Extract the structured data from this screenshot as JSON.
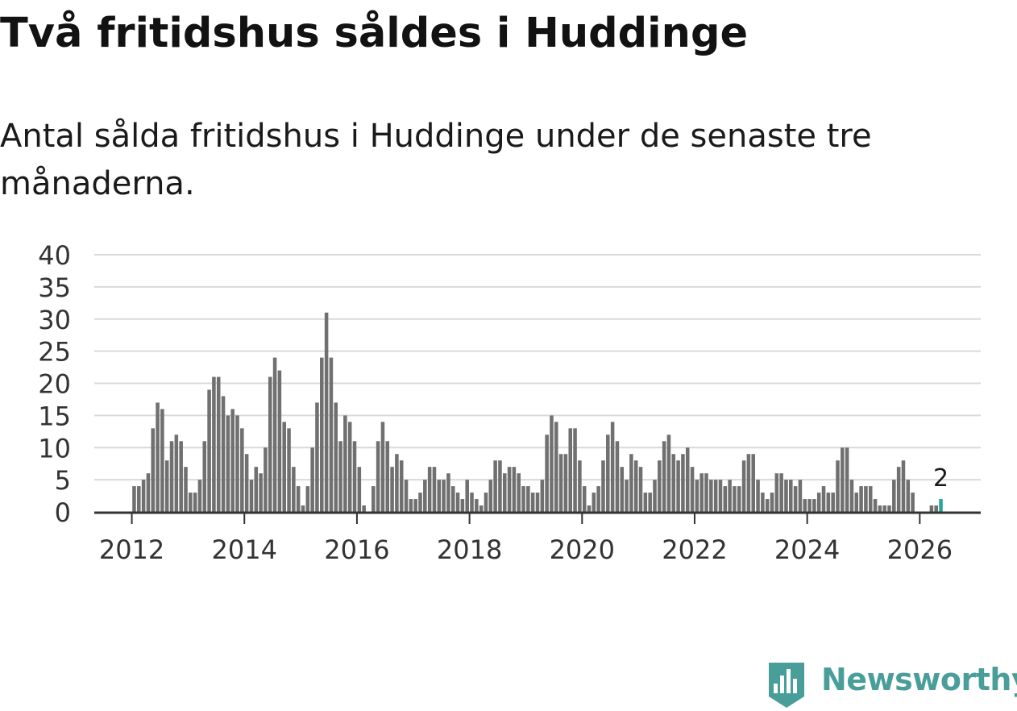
{
  "title": "Två fritidshus såldes i Huddinge",
  "subtitle": "Antal sålda fritidshus i Huddinge under de senaste tre månaderna.",
  "brand": {
    "name": "Newsworthy",
    "color": "#4a9e99",
    "icon": "newsworthy-logo-icon"
  },
  "chart_data": {
    "type": "bar",
    "title": "",
    "xlabel": "",
    "ylabel": "",
    "ylim": [
      0,
      40
    ],
    "yticks": [
      0,
      5,
      10,
      15,
      20,
      25,
      30,
      35,
      40
    ],
    "xticks": [
      "2012",
      "2014",
      "2016",
      "2018",
      "2020",
      "2022",
      "2024",
      "2026"
    ],
    "x_range": [
      "2011-05",
      "2027-02"
    ],
    "grid": true,
    "legend": "none",
    "bar_color": "#707070",
    "highlight_color": "#26a69a",
    "highlight_label": "2",
    "start_month": "2012-01",
    "values": [
      4,
      4,
      5,
      6,
      13,
      17,
      16,
      8,
      11,
      12,
      11,
      7,
      3,
      3,
      5,
      11,
      19,
      21,
      21,
      18,
      15,
      16,
      15,
      13,
      9,
      5,
      7,
      6,
      10,
      21,
      24,
      22,
      14,
      13,
      7,
      4,
      1,
      4,
      10,
      17,
      24,
      31,
      24,
      17,
      11,
      15,
      14,
      11,
      7,
      1,
      0,
      4,
      11,
      14,
      11,
      7,
      9,
      8,
      5,
      2,
      2,
      3,
      5,
      7,
      7,
      5,
      5,
      6,
      4,
      3,
      2,
      5,
      3,
      2,
      1,
      3,
      5,
      8,
      8,
      6,
      7,
      7,
      6,
      4,
      4,
      3,
      3,
      5,
      12,
      15,
      14,
      9,
      9,
      13,
      13,
      8,
      4,
      1,
      3,
      4,
      8,
      12,
      14,
      11,
      7,
      5,
      9,
      8,
      7,
      3,
      3,
      5,
      8,
      11,
      12,
      9,
      8,
      9,
      10,
      7,
      5,
      6,
      6,
      5,
      5,
      5,
      4,
      5,
      4,
      4,
      8,
      9,
      9,
      5,
      3,
      2,
      3,
      6,
      6,
      5,
      5,
      4,
      5,
      2,
      2,
      2,
      3,
      4,
      3,
      3,
      8,
      10,
      10,
      5,
      3,
      4,
      4,
      4,
      2,
      1,
      1,
      1,
      5,
      7,
      8,
      5,
      3,
      0,
      0,
      0,
      1,
      1,
      2
    ]
  }
}
